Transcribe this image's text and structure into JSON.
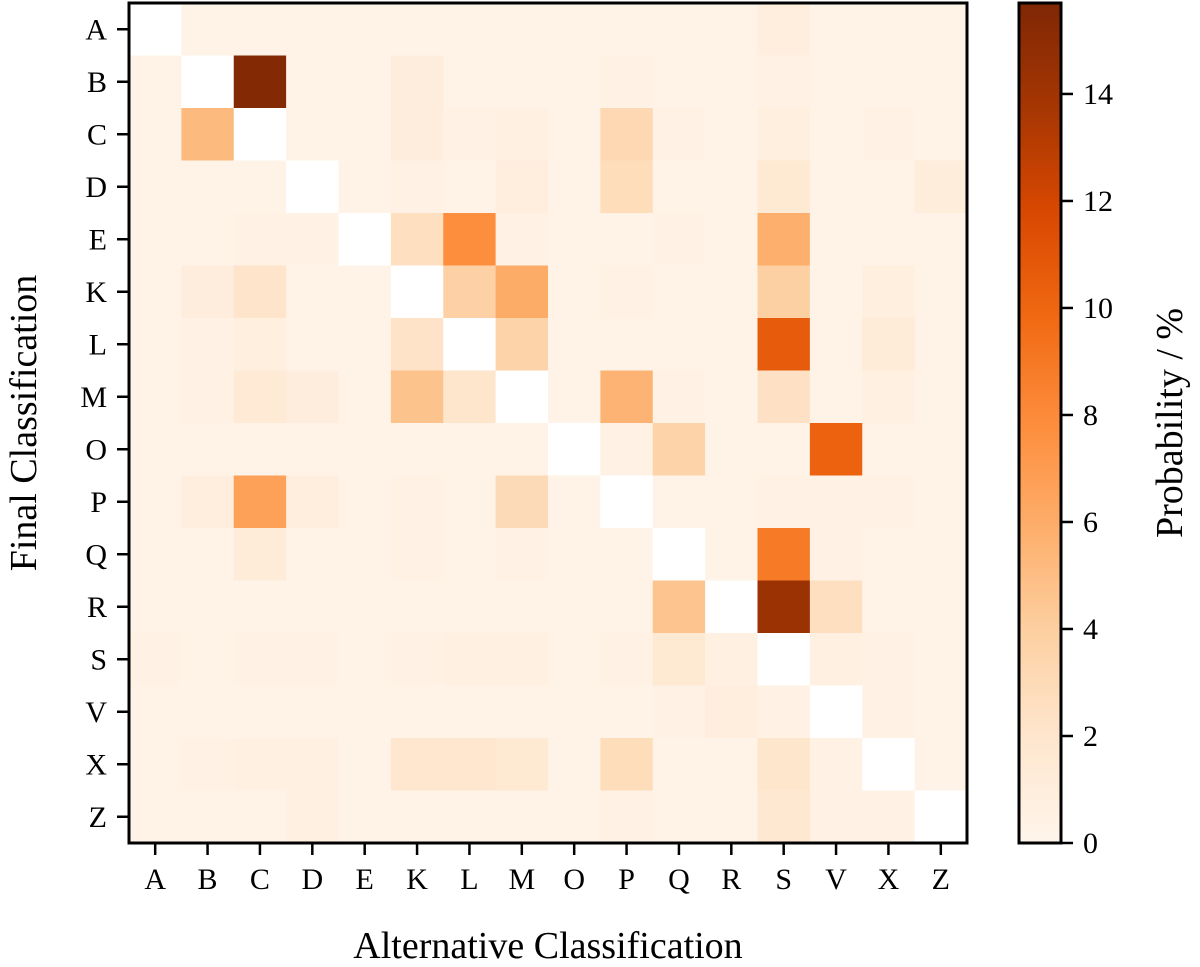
{
  "chart_data": {
    "type": "heatmap",
    "title": "",
    "xlabel": "Alternative Classification",
    "ylabel": "Final Classification",
    "x_categories": [
      "A",
      "B",
      "C",
      "D",
      "E",
      "K",
      "L",
      "M",
      "O",
      "P",
      "Q",
      "R",
      "S",
      "V",
      "X",
      "Z"
    ],
    "y_categories": [
      "A",
      "B",
      "C",
      "D",
      "E",
      "K",
      "L",
      "M",
      "O",
      "P",
      "Q",
      "R",
      "S",
      "V",
      "X",
      "Z"
    ],
    "colorbar": {
      "label": "Probability / %",
      "range": [
        0,
        15.7
      ],
      "ticks": [
        0,
        2,
        4,
        6,
        8,
        10,
        12,
        14
      ],
      "colormap": [
        "#fff5eb",
        "#fee6ce",
        "#fdd0a2",
        "#fdae6b",
        "#fd8d3c",
        "#f16913",
        "#d94801",
        "#a63603",
        "#7f2704"
      ]
    },
    "grid": false,
    "values": [
      [
        0,
        0.3,
        0.3,
        0.3,
        0.3,
        0.3,
        0.3,
        0.3,
        0.3,
        0.3,
        0.3,
        0.3,
        0.9,
        0.3,
        0.3,
        0.3
      ],
      [
        0.3,
        0,
        15.5,
        0.3,
        0.3,
        1.0,
        0.3,
        0.3,
        0.3,
        0.4,
        0.3,
        0.3,
        0.4,
        0.3,
        0.3,
        0.3
      ],
      [
        0.3,
        5.2,
        0,
        0.3,
        0.3,
        1.0,
        0.4,
        0.7,
        0.3,
        3.2,
        0.4,
        0.3,
        0.8,
        0.3,
        0.4,
        0.3
      ],
      [
        0.3,
        0.3,
        0.3,
        0,
        0.3,
        0.4,
        0.3,
        0.9,
        0.3,
        2.8,
        0.3,
        0.3,
        1.6,
        0.3,
        0.3,
        1.1
      ],
      [
        0.3,
        0.3,
        0.5,
        0.4,
        0,
        2.6,
        7.8,
        0.5,
        0.3,
        0.3,
        0.4,
        0.3,
        5.8,
        0.3,
        0.3,
        0.3
      ],
      [
        0.3,
        1.0,
        2.1,
        0.3,
        0.3,
        0,
        3.8,
        6.0,
        0.3,
        0.4,
        0.3,
        0.3,
        3.9,
        0.3,
        0.8,
        0.3
      ],
      [
        0.3,
        0.4,
        0.8,
        0.3,
        0.3,
        2.2,
        0,
        3.6,
        0.3,
        0.3,
        0.3,
        0.3,
        10.6,
        0.3,
        1.3,
        0.3
      ],
      [
        0.3,
        0.4,
        1.5,
        1.0,
        0.3,
        4.7,
        2.0,
        0,
        0.3,
        5.6,
        0.5,
        0.3,
        2.4,
        0.3,
        0.7,
        0.3
      ],
      [
        0.3,
        0.3,
        0.3,
        0.3,
        0.3,
        0.3,
        0.3,
        0.3,
        0,
        0.4,
        3.6,
        0.3,
        0.3,
        10.2,
        0.3,
        0.3
      ],
      [
        0.3,
        0.9,
        6.7,
        0.9,
        0.3,
        0.4,
        0.3,
        3.0,
        0.3,
        0,
        0.3,
        0.3,
        0.5,
        0.4,
        0.4,
        0.3
      ],
      [
        0.3,
        0.3,
        1.2,
        0.3,
        0.3,
        0.4,
        0.3,
        0.4,
        0.3,
        0.3,
        0,
        0.3,
        8.9,
        0.4,
        0.3,
        0.3
      ],
      [
        0.3,
        0.3,
        0.3,
        0.3,
        0.3,
        0.3,
        0.3,
        0.3,
        0.3,
        0.3,
        4.6,
        0,
        14.3,
        2.6,
        0.3,
        0.3
      ],
      [
        0.4,
        0.3,
        0.4,
        0.4,
        0.3,
        0.5,
        0.6,
        0.6,
        0.3,
        0.4,
        1.6,
        0.7,
        0,
        0.6,
        0.4,
        0.3
      ],
      [
        0.3,
        0.3,
        0.3,
        0.3,
        0.3,
        0.3,
        0.3,
        0.3,
        0.3,
        0.3,
        0.5,
        0.9,
        0.5,
        0,
        0.4,
        0.3
      ],
      [
        0.3,
        0.4,
        0.6,
        0.7,
        0.3,
        1.9,
        1.9,
        1.6,
        0.3,
        2.8,
        0.3,
        0.3,
        2.0,
        0.4,
        0,
        0.3
      ],
      [
        0.3,
        0.3,
        0.3,
        0.7,
        0.3,
        0.3,
        0.3,
        0.3,
        0.3,
        0.5,
        0.3,
        0.3,
        1.7,
        0.4,
        0.4,
        0
      ]
    ]
  }
}
